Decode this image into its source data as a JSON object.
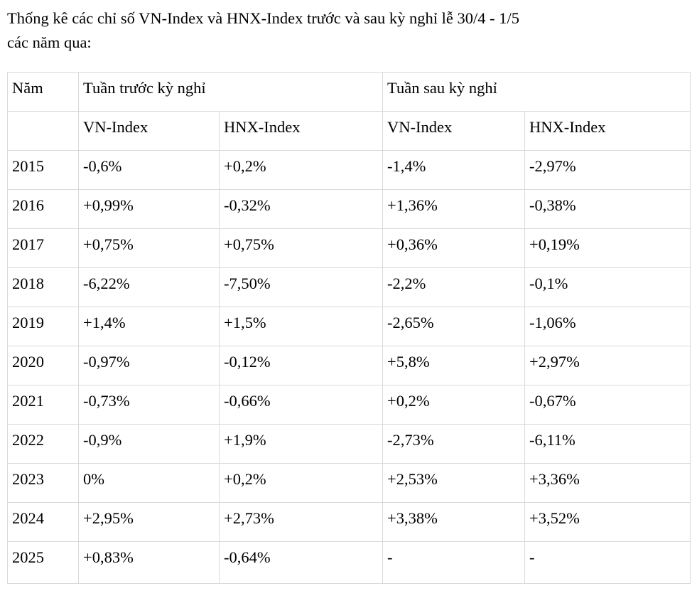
{
  "title": {
    "line1": "Thống kê các chỉ số VN-Index và HNX-Index trước và sau kỳ nghỉ lễ 30/4 - 1/5",
    "line2": "các năm qua:"
  },
  "table": {
    "header": {
      "year": "Năm",
      "before_group": "Tuần trước kỳ nghỉ",
      "after_group": "Tuần sau kỳ nghỉ",
      "subcols": [
        "VN-Index",
        "HNX-Index",
        "VN-Index",
        "HNX-Index"
      ]
    },
    "rows": [
      {
        "year": "2015",
        "values": [
          "-0,6%",
          "+0,2%",
          "-1,4%",
          "-2,97%"
        ]
      },
      {
        "year": "2016",
        "values": [
          "+0,99%",
          "-0,32%",
          "+1,36%",
          "-0,38%"
        ]
      },
      {
        "year": "2017",
        "values": [
          "+0,75%",
          "+0,75%",
          "+0,36%",
          "+0,19%"
        ]
      },
      {
        "year": "2018",
        "values": [
          "-6,22%",
          "-7,50%",
          "-2,2%",
          "-0,1%"
        ]
      },
      {
        "year": "2019",
        "values": [
          "+1,4%",
          "+1,5%",
          "-2,65%",
          "-1,06%"
        ]
      },
      {
        "year": "2020",
        "values": [
          "-0,97%",
          "-0,12%",
          "+5,8%",
          "+2,97%"
        ]
      },
      {
        "year": "2021",
        "values": [
          "-0,73%",
          "-0,66%",
          "+0,2%",
          "-0,67%"
        ]
      },
      {
        "year": "2022",
        "values": [
          "-0,9%",
          "+1,9%",
          "-2,73%",
          "-6,11%"
        ]
      },
      {
        "year": "2023",
        "values": [
          "0%",
          "+0,2%",
          "+2,53%",
          "+3,36%"
        ]
      },
      {
        "year": "2024",
        "values": [
          "+2,95%",
          "+2,73%",
          "+3,38%",
          "+3,52%"
        ]
      },
      {
        "year": "2025",
        "values": [
          "+0,83%",
          "-0,64%",
          "-",
          "-"
        ]
      }
    ],
    "colors": {
      "text": "#000000",
      "border": "#d9d9d9",
      "background": "#ffffff"
    }
  }
}
